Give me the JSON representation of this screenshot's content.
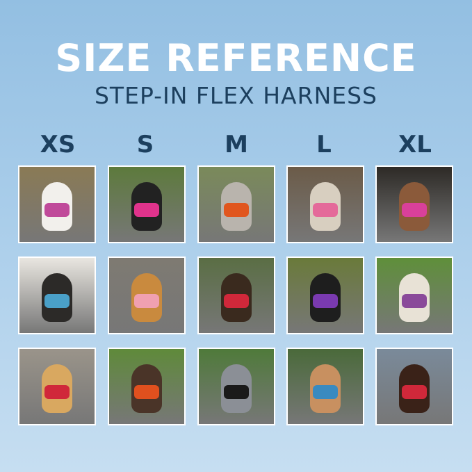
{
  "header": {
    "title": "SIZE REFERENCE",
    "subtitle": "STEP-IN FLEX HARNESS"
  },
  "sizes": [
    "XS",
    "S",
    "M",
    "L",
    "XL"
  ],
  "colors": {
    "title": "#ffffff",
    "subtitle": "#1c3f5e",
    "size_labels": "#1c3f5e"
  }
}
